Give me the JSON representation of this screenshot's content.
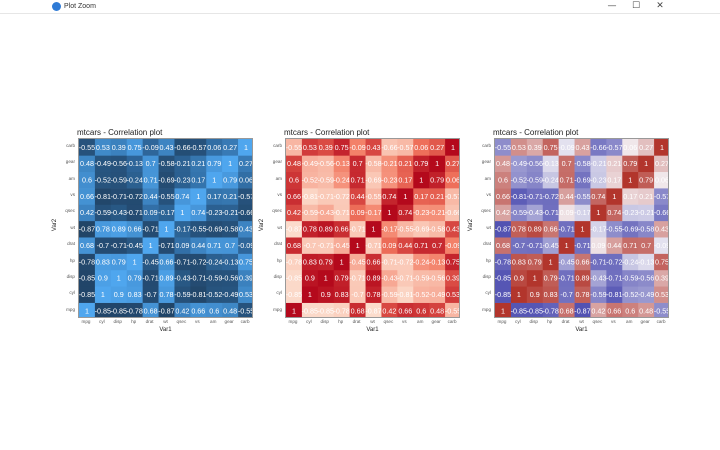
{
  "window": {
    "title": "Plot Zoom",
    "buttons": {
      "minimize": "—",
      "maximize": "☐",
      "close": "✕"
    }
  },
  "plots": [
    {
      "title": "mtcars - Correlation plot",
      "palette": "blue"
    },
    {
      "title": "mtcars - Correlation plot",
      "palette": "red"
    },
    {
      "title": "mtcars - Correlation plot",
      "palette": "diverging"
    }
  ],
  "palettes": {
    "blue": [
      "#1f3f5f",
      "#2f6aa0",
      "#4fa6ee"
    ],
    "red": [
      "#fdebdc",
      "#f2765e",
      "#b4091c"
    ],
    "diverging": [
      "#3a3aa8",
      "#f4f2f6",
      "#b2352c"
    ]
  },
  "chart_data": {
    "type": "heatmap",
    "xlabel": "Var1",
    "ylabel": "Var2",
    "vars": [
      "mpg",
      "cyl",
      "disp",
      "hp",
      "drat",
      "wt",
      "qsec",
      "vs",
      "am",
      "gear",
      "carb"
    ],
    "matrix": [
      [
        1,
        -0.85,
        -0.85,
        -0.78,
        0.68,
        -0.87,
        0.42,
        0.66,
        0.6,
        0.48,
        -0.55
      ],
      [
        -0.85,
        1,
        0.9,
        0.83,
        -0.7,
        0.78,
        -0.59,
        -0.81,
        -0.52,
        -0.49,
        0.53
      ],
      [
        -0.85,
        0.9,
        1,
        0.79,
        -0.71,
        0.89,
        -0.43,
        -0.71,
        -0.59,
        -0.56,
        0.39
      ],
      [
        -0.78,
        0.83,
        0.79,
        1,
        -0.45,
        0.66,
        -0.71,
        -0.72,
        -0.24,
        -0.13,
        0.75
      ],
      [
        0.68,
        -0.7,
        -0.71,
        -0.45,
        1,
        -0.71,
        0.09,
        0.44,
        0.71,
        0.7,
        -0.09
      ],
      [
        -0.87,
        0.78,
        0.89,
        0.66,
        -0.71,
        1,
        -0.17,
        -0.55,
        -0.69,
        -0.58,
        0.43
      ],
      [
        0.42,
        -0.59,
        -0.43,
        -0.71,
        0.09,
        -0.17,
        1,
        0.74,
        -0.23,
        -0.21,
        -0.66
      ],
      [
        0.66,
        -0.81,
        -0.71,
        -0.72,
        0.44,
        -0.55,
        0.74,
        1,
        0.17,
        0.21,
        -0.57
      ],
      [
        0.6,
        -0.52,
        -0.59,
        -0.24,
        0.71,
        -0.69,
        -0.23,
        0.17,
        1,
        0.79,
        0.06
      ],
      [
        0.48,
        -0.49,
        -0.56,
        -0.13,
        0.7,
        -0.58,
        -0.21,
        0.21,
        0.79,
        1,
        0.27
      ],
      [
        -0.55,
        0.53,
        0.39,
        0.75,
        -0.09,
        0.43,
        -0.66,
        -0.57,
        0.06,
        0.27,
        1
      ]
    ]
  }
}
